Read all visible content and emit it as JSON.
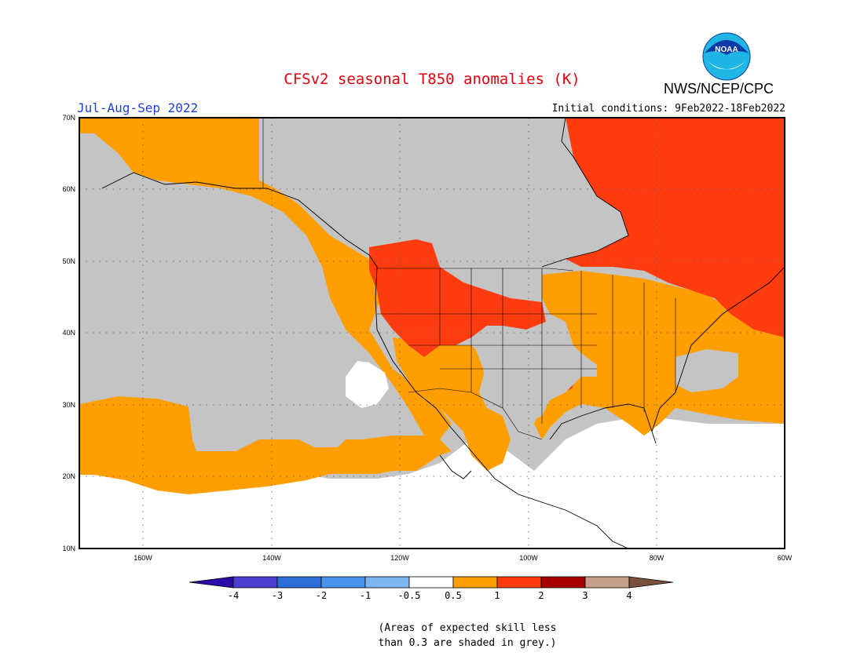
{
  "title": "CFSv2 seasonal T850 anomalies (K)",
  "agency": "NWS/NCEP/CPC",
  "logo_text": "NOAA",
  "season": "Jul-Aug-Sep 2022",
  "initial_conditions": "Initial conditions: 9Feb2022-18Feb2022",
  "lat_labels": [
    "70N",
    "60N",
    "50N",
    "40N",
    "30N",
    "20N",
    "10N"
  ],
  "lon_labels": [
    "160W",
    "140W",
    "120W",
    "100W",
    "80W",
    "60W"
  ],
  "map_extent": {
    "lon": [
      -170,
      -60
    ],
    "lat": [
      10,
      70
    ]
  },
  "colorbar": {
    "tick_labels": [
      "-4",
      "-3",
      "-2",
      "-1",
      "-0.5",
      "0.5",
      "1",
      "2",
      "3",
      "4"
    ],
    "colors": [
      "#2a0aa8",
      "#4a3fd0",
      "#2d6fd6",
      "#4a93ec",
      "#7db6f2",
      "#ffffff",
      "#ff9e00",
      "#ff3b10",
      "#a80000",
      "#c9a08c",
      "#7a4f3c"
    ]
  },
  "colors": {
    "grey_low_skill": "#c4c4c4",
    "anom_0_5_to_1": "#ff9e00",
    "anom_1_to_2": "#ff3b10",
    "near_zero": "#ffffff"
  },
  "note_line1": "(Areas of expected skill less",
  "note_line2": "than 0.3 are shaded in grey.)"
}
